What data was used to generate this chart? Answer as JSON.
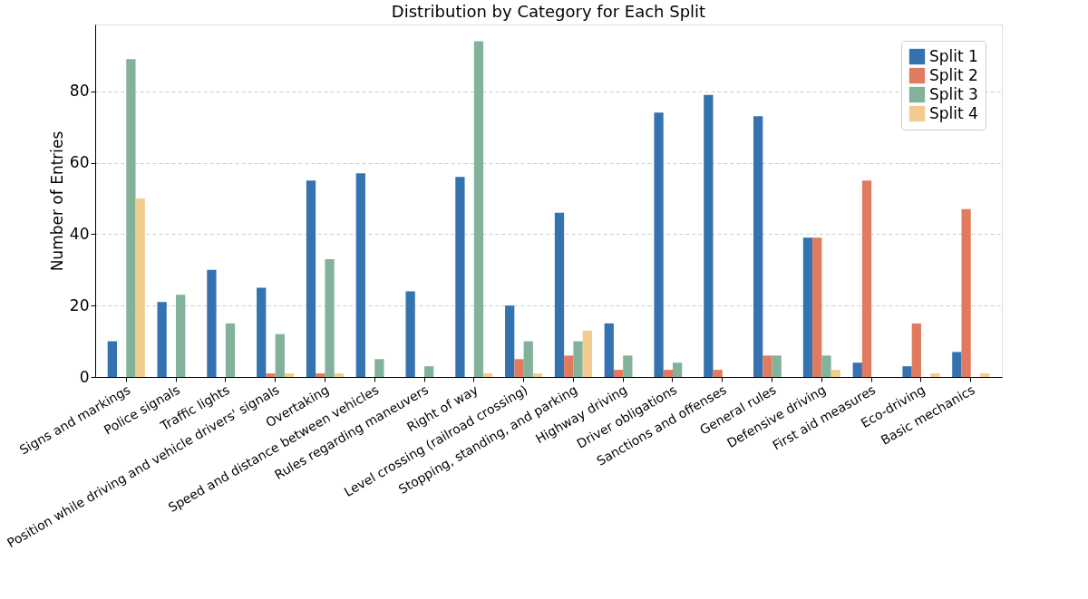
{
  "chart_data": {
    "type": "bar",
    "title": "Distribution by Category for Each Split",
    "ylabel": "Number of Entries",
    "categories": [
      "Signs and markings",
      "Police signals",
      "Traffic lights",
      "Position while driving and vehicle drivers' signals",
      "Overtaking",
      "Speed and distance between vehicles",
      "Rules regarding maneuvers",
      "Right of way",
      "Level crossing (railroad crossing)",
      "Stopping, standing, and parking",
      "Highway driving",
      "Driver obligations",
      "Sanctions and offenses",
      "General rules",
      "Defensive driving",
      "First aid measures",
      "Eco-driving",
      "Basic mechanics"
    ],
    "series": [
      {
        "name": "Split 1",
        "color": "#3572b0",
        "values": [
          10,
          21,
          30,
          25,
          55,
          57,
          24,
          56,
          20,
          46,
          15,
          74,
          79,
          73,
          39,
          4,
          3,
          7
        ]
      },
      {
        "name": "Split 2",
        "color": "#e07b5f",
        "values": [
          0,
          0,
          0,
          1,
          1,
          0,
          0,
          0,
          5,
          6,
          2,
          2,
          2,
          6,
          39,
          55,
          15,
          47
        ]
      },
      {
        "name": "Split 3",
        "color": "#82b29a",
        "values": [
          89,
          23,
          15,
          12,
          33,
          5,
          3,
          94,
          10,
          10,
          6,
          4,
          0,
          6,
          6,
          0,
          0,
          0
        ]
      },
      {
        "name": "Split 4",
        "color": "#f2cc8f",
        "values": [
          50,
          0,
          0,
          1,
          1,
          0,
          0,
          1,
          1,
          13,
          0,
          0,
          0,
          0,
          2,
          0,
          1,
          1
        ]
      }
    ],
    "ylim": [
      0,
      98.7
    ],
    "yticks": [
      0,
      20,
      40,
      60,
      80
    ],
    "grid": "y",
    "legend": "top right"
  }
}
